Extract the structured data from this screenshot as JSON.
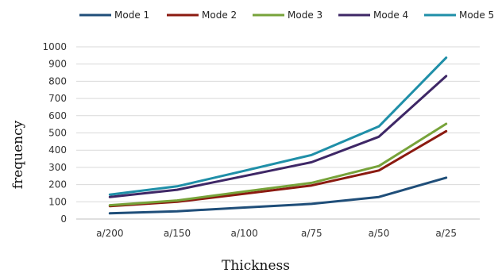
{
  "chart_data": {
    "type": "line",
    "title": "",
    "xlabel": "Thickness",
    "ylabel": "frequency",
    "categories": [
      "a/200",
      "a/150",
      "a/100",
      "a/75",
      "a/50",
      "a/25"
    ],
    "ylim": [
      0,
      1000
    ],
    "yticks": [
      0,
      100,
      200,
      300,
      400,
      500,
      600,
      700,
      800,
      900,
      1000
    ],
    "grid": "horizontal",
    "legend_position": "top",
    "series": [
      {
        "name": "Mode 1",
        "color": "#1F4E79",
        "values": [
          33,
          45,
          67,
          88,
          128,
          240
        ]
      },
      {
        "name": "Mode 2",
        "color": "#8B1A10",
        "values": [
          75,
          100,
          147,
          195,
          282,
          510
        ]
      },
      {
        "name": "Mode 3",
        "color": "#77A33A",
        "values": [
          80,
          108,
          160,
          210,
          308,
          553
        ]
      },
      {
        "name": "Mode 4",
        "color": "#3E2766",
        "values": [
          128,
          170,
          250,
          330,
          478,
          830
        ]
      },
      {
        "name": "Mode 5",
        "color": "#1F8FA8",
        "values": [
          142,
          190,
          280,
          372,
          538,
          937
        ]
      }
    ]
  }
}
